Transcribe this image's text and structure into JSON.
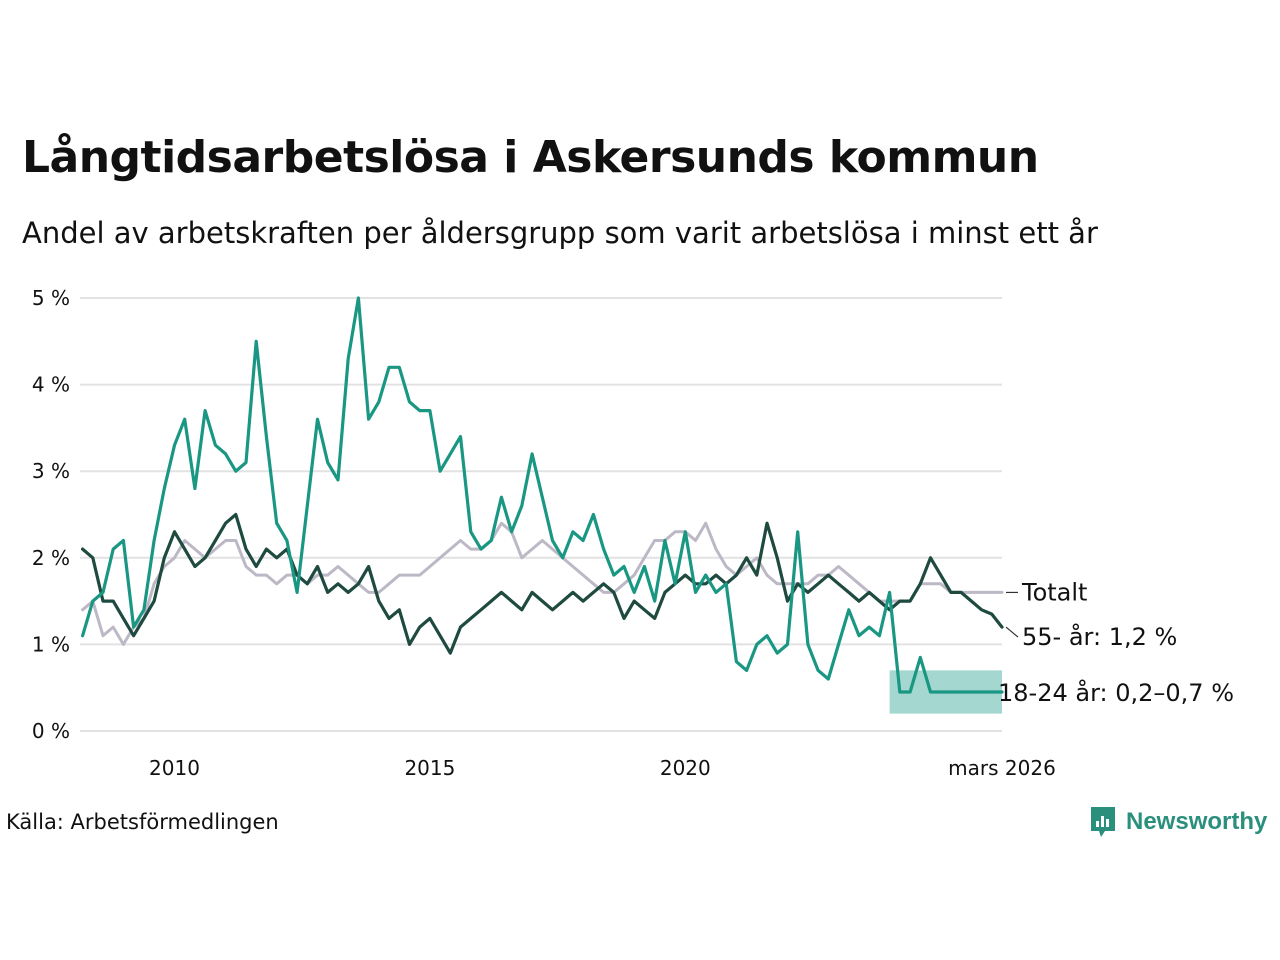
{
  "title": "Långtidsarbetslösa i Askersunds kommun",
  "subtitle": "Andel av arbetskraften per åldersgrupp som varit arbetslösa i minst ett år",
  "source": "Källa: Arbetsförmedlingen",
  "brand": "Newsworthy",
  "colors": {
    "youth": "#1a9783",
    "older": "#1e4a40",
    "total": "#bdb8c6",
    "band": "#9fd5cc",
    "grid": "#e2e2e2",
    "brand": "#2b8f7e"
  },
  "chart_data": {
    "type": "line",
    "title": "Långtidsarbetslösa i Askersunds kommun",
    "xlabel": "",
    "ylabel": "",
    "xlim": [
      2008.15,
      2026.2
    ],
    "ylim": [
      0,
      5
    ],
    "y_ticks": [
      {
        "value": 0,
        "label": "0 %"
      },
      {
        "value": 1,
        "label": "1 %"
      },
      {
        "value": 2,
        "label": "2 %"
      },
      {
        "value": 3,
        "label": "3 %"
      },
      {
        "value": 4,
        "label": "4 %"
      },
      {
        "value": 5,
        "label": "5 %"
      }
    ],
    "x_ticks": [
      {
        "value": 2010,
        "label": "2010"
      },
      {
        "value": 2015,
        "label": "2015"
      },
      {
        "value": 2020,
        "label": "2020"
      },
      {
        "value": 2026.2,
        "label": "mars 2026"
      }
    ],
    "series": [
      {
        "name": "Totalt",
        "key": "total",
        "label": "Totalt",
        "x": [
          2008.2,
          2008.4,
          2008.6,
          2008.8,
          2009.0,
          2009.2,
          2009.4,
          2009.6,
          2009.8,
          2010.0,
          2010.2,
          2010.4,
          2010.6,
          2010.8,
          2011.0,
          2011.2,
          2011.4,
          2011.6,
          2011.8,
          2012.0,
          2012.2,
          2012.4,
          2012.6,
          2012.8,
          2013.0,
          2013.2,
          2013.4,
          2013.6,
          2013.8,
          2014.0,
          2014.2,
          2014.4,
          2014.6,
          2014.8,
          2015.0,
          2015.2,
          2015.4,
          2015.6,
          2015.8,
          2016.0,
          2016.2,
          2016.4,
          2016.6,
          2016.8,
          2017.0,
          2017.2,
          2017.4,
          2017.6,
          2017.8,
          2018.0,
          2018.2,
          2018.4,
          2018.6,
          2018.8,
          2019.0,
          2019.2,
          2019.4,
          2019.6,
          2019.8,
          2020.0,
          2020.2,
          2020.4,
          2020.6,
          2020.8,
          2021.0,
          2021.2,
          2021.4,
          2021.6,
          2021.8,
          2022.0,
          2022.2,
          2022.4,
          2022.6,
          2022.8,
          2023.0,
          2023.2,
          2023.4,
          2023.6,
          2023.8,
          2024.0,
          2024.2,
          2024.4,
          2024.6,
          2024.8,
          2025.0,
          2025.2,
          2025.4,
          2025.6,
          2025.8,
          2026.0,
          2026.2
        ],
        "y": [
          1.4,
          1.5,
          1.1,
          1.2,
          1.0,
          1.2,
          1.3,
          1.7,
          1.9,
          2.0,
          2.2,
          2.1,
          2.0,
          2.1,
          2.2,
          2.2,
          1.9,
          1.8,
          1.8,
          1.7,
          1.8,
          1.8,
          1.7,
          1.8,
          1.8,
          1.9,
          1.8,
          1.7,
          1.6,
          1.6,
          1.7,
          1.8,
          1.8,
          1.8,
          1.9,
          2.0,
          2.1,
          2.2,
          2.1,
          2.1,
          2.2,
          2.4,
          2.3,
          2.0,
          2.1,
          2.2,
          2.1,
          2.0,
          1.9,
          1.8,
          1.7,
          1.6,
          1.6,
          1.7,
          1.8,
          2.0,
          2.2,
          2.2,
          2.3,
          2.3,
          2.2,
          2.4,
          2.1,
          1.9,
          1.8,
          1.9,
          2.0,
          1.8,
          1.7,
          1.7,
          1.7,
          1.7,
          1.8,
          1.8,
          1.9,
          1.8,
          1.7,
          1.6,
          1.5,
          1.5,
          1.5,
          1.5,
          1.7,
          1.7,
          1.7,
          1.6,
          1.6,
          1.6,
          1.6,
          1.6,
          1.6
        ]
      },
      {
        "name": "55- år",
        "key": "older",
        "label": "55- år: 1,2 %",
        "x": [
          2008.2,
          2008.4,
          2008.6,
          2008.8,
          2009.0,
          2009.2,
          2009.4,
          2009.6,
          2009.8,
          2010.0,
          2010.2,
          2010.4,
          2010.6,
          2010.8,
          2011.0,
          2011.2,
          2011.4,
          2011.6,
          2011.8,
          2012.0,
          2012.2,
          2012.4,
          2012.6,
          2012.8,
          2013.0,
          2013.2,
          2013.4,
          2013.6,
          2013.8,
          2014.0,
          2014.2,
          2014.4,
          2014.6,
          2014.8,
          2015.0,
          2015.2,
          2015.4,
          2015.6,
          2015.8,
          2016.0,
          2016.2,
          2016.4,
          2016.6,
          2016.8,
          2017.0,
          2017.2,
          2017.4,
          2017.6,
          2017.8,
          2018.0,
          2018.2,
          2018.4,
          2018.6,
          2018.8,
          2019.0,
          2019.2,
          2019.4,
          2019.6,
          2019.8,
          2020.0,
          2020.2,
          2020.4,
          2020.6,
          2020.8,
          2021.0,
          2021.2,
          2021.4,
          2021.6,
          2021.8,
          2022.0,
          2022.2,
          2022.4,
          2022.6,
          2022.8,
          2023.0,
          2023.2,
          2023.4,
          2023.6,
          2023.8,
          2024.0,
          2024.2,
          2024.4,
          2024.6,
          2024.8,
          2025.0,
          2025.2,
          2025.4,
          2025.6,
          2025.8,
          2026.0,
          2026.2
        ],
        "y": [
          2.1,
          2.0,
          1.5,
          1.5,
          1.3,
          1.1,
          1.3,
          1.5,
          2.0,
          2.3,
          2.1,
          1.9,
          2.0,
          2.2,
          2.4,
          2.5,
          2.1,
          1.9,
          2.1,
          2.0,
          2.1,
          1.8,
          1.7,
          1.9,
          1.6,
          1.7,
          1.6,
          1.7,
          1.9,
          1.5,
          1.3,
          1.4,
          1.0,
          1.2,
          1.3,
          1.1,
          0.9,
          1.2,
          1.3,
          1.4,
          1.5,
          1.6,
          1.5,
          1.4,
          1.6,
          1.5,
          1.4,
          1.5,
          1.6,
          1.5,
          1.6,
          1.7,
          1.6,
          1.3,
          1.5,
          1.4,
          1.3,
          1.6,
          1.7,
          1.8,
          1.7,
          1.7,
          1.8,
          1.7,
          1.8,
          2.0,
          1.8,
          2.4,
          2.0,
          1.5,
          1.7,
          1.6,
          1.7,
          1.8,
          1.7,
          1.6,
          1.5,
          1.6,
          1.5,
          1.4,
          1.5,
          1.5,
          1.7,
          2.0,
          1.8,
          1.6,
          1.6,
          1.5,
          1.4,
          1.35,
          1.2
        ]
      },
      {
        "name": "18-24 år",
        "key": "youth",
        "label": "18-24 år: 0,2–0,7 %",
        "x": [
          2008.2,
          2008.4,
          2008.6,
          2008.8,
          2009.0,
          2009.2,
          2009.4,
          2009.6,
          2009.8,
          2010.0,
          2010.2,
          2010.4,
          2010.6,
          2010.8,
          2011.0,
          2011.2,
          2011.4,
          2011.6,
          2011.8,
          2012.0,
          2012.2,
          2012.4,
          2012.6,
          2012.8,
          2013.0,
          2013.2,
          2013.4,
          2013.6,
          2013.8,
          2014.0,
          2014.2,
          2014.4,
          2014.6,
          2014.8,
          2015.0,
          2015.2,
          2015.4,
          2015.6,
          2015.8,
          2016.0,
          2016.2,
          2016.4,
          2016.6,
          2016.8,
          2017.0,
          2017.2,
          2017.4,
          2017.6,
          2017.8,
          2018.0,
          2018.2,
          2018.4,
          2018.6,
          2018.8,
          2019.0,
          2019.2,
          2019.4,
          2019.6,
          2019.8,
          2020.0,
          2020.2,
          2020.4,
          2020.6,
          2020.8,
          2021.0,
          2021.2,
          2021.4,
          2021.6,
          2021.8,
          2022.0,
          2022.2,
          2022.4,
          2022.6,
          2022.8,
          2023.0,
          2023.2,
          2023.4,
          2023.6,
          2023.8,
          2024.0,
          2024.2,
          2024.4,
          2024.6,
          2024.8,
          2025.0,
          2025.2,
          2025.4,
          2025.6,
          2025.8,
          2026.0,
          2026.2
        ],
        "y": [
          1.1,
          1.5,
          1.6,
          2.1,
          2.2,
          1.2,
          1.4,
          2.2,
          2.8,
          3.3,
          3.6,
          2.8,
          3.7,
          3.3,
          3.2,
          3.0,
          3.1,
          4.5,
          3.4,
          2.4,
          2.2,
          1.6,
          2.6,
          3.6,
          3.1,
          2.9,
          4.3,
          5.0,
          3.6,
          3.8,
          4.2,
          4.2,
          3.8,
          3.7,
          3.7,
          3.0,
          3.2,
          3.4,
          2.3,
          2.1,
          2.2,
          2.7,
          2.3,
          2.6,
          3.2,
          2.7,
          2.2,
          2.0,
          2.3,
          2.2,
          2.5,
          2.1,
          1.8,
          1.9,
          1.6,
          1.9,
          1.5,
          2.2,
          1.7,
          2.3,
          1.6,
          1.8,
          1.6,
          1.7,
          0.8,
          0.7,
          1.0,
          1.1,
          0.9,
          1.0,
          2.3,
          1.0,
          0.7,
          0.6,
          1.0,
          1.4,
          1.1,
          1.2,
          1.1,
          1.6,
          0.45,
          0.45,
          0.85,
          0.45,
          0.45,
          0.45,
          0.45,
          0.45,
          0.45,
          0.45,
          0.45
        ]
      }
    ],
    "uncertainty_band": {
      "series": "18-24 år",
      "x": [
        2024.0,
        2024.2,
        2024.4,
        2024.6,
        2024.8,
        2025.0,
        2025.2,
        2025.4,
        2025.6,
        2025.8,
        2026.0,
        2026.2
      ],
      "lower": [
        0.2,
        0.2,
        0.2,
        0.2,
        0.2,
        0.2,
        0.2,
        0.2,
        0.2,
        0.2,
        0.2,
        0.2
      ],
      "upper": [
        0.7,
        0.7,
        0.7,
        0.7,
        0.7,
        0.7,
        0.7,
        0.7,
        0.7,
        0.7,
        0.7,
        0.7
      ]
    }
  }
}
